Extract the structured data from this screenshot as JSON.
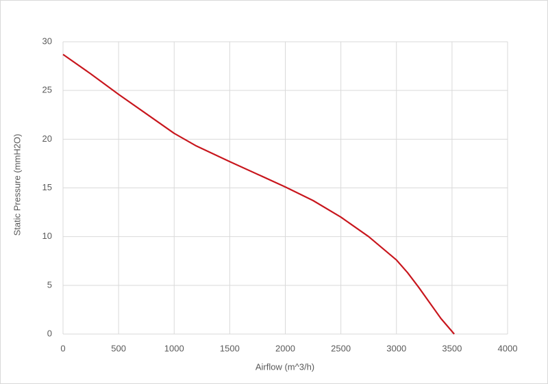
{
  "chart_data": {
    "type": "line",
    "x_label": "Airflow (m^3/h)",
    "y_label": "Static Pressure (mmH2O)",
    "x": [
      0,
      250,
      500,
      750,
      1000,
      1200,
      1500,
      1750,
      2000,
      2250,
      2500,
      2750,
      3000,
      3100,
      3200,
      3300,
      3400,
      3520
    ],
    "series": [
      {
        "color": "#c8161d",
        "values": [
          28.7,
          26.7,
          24.6,
          22.6,
          20.6,
          19.3,
          17.7,
          16.4,
          15.1,
          13.7,
          12.0,
          10.0,
          7.6,
          6.3,
          4.8,
          3.2,
          1.6,
          0
        ]
      }
    ],
    "xlim": [
      0,
      4000
    ],
    "xticks": [
      0,
      500,
      1000,
      1500,
      2000,
      2500,
      3000,
      3500,
      4000
    ],
    "ylim": [
      0,
      30
    ],
    "yticks": [
      0,
      5,
      10,
      15,
      20,
      25,
      30
    ],
    "grid": true
  }
}
